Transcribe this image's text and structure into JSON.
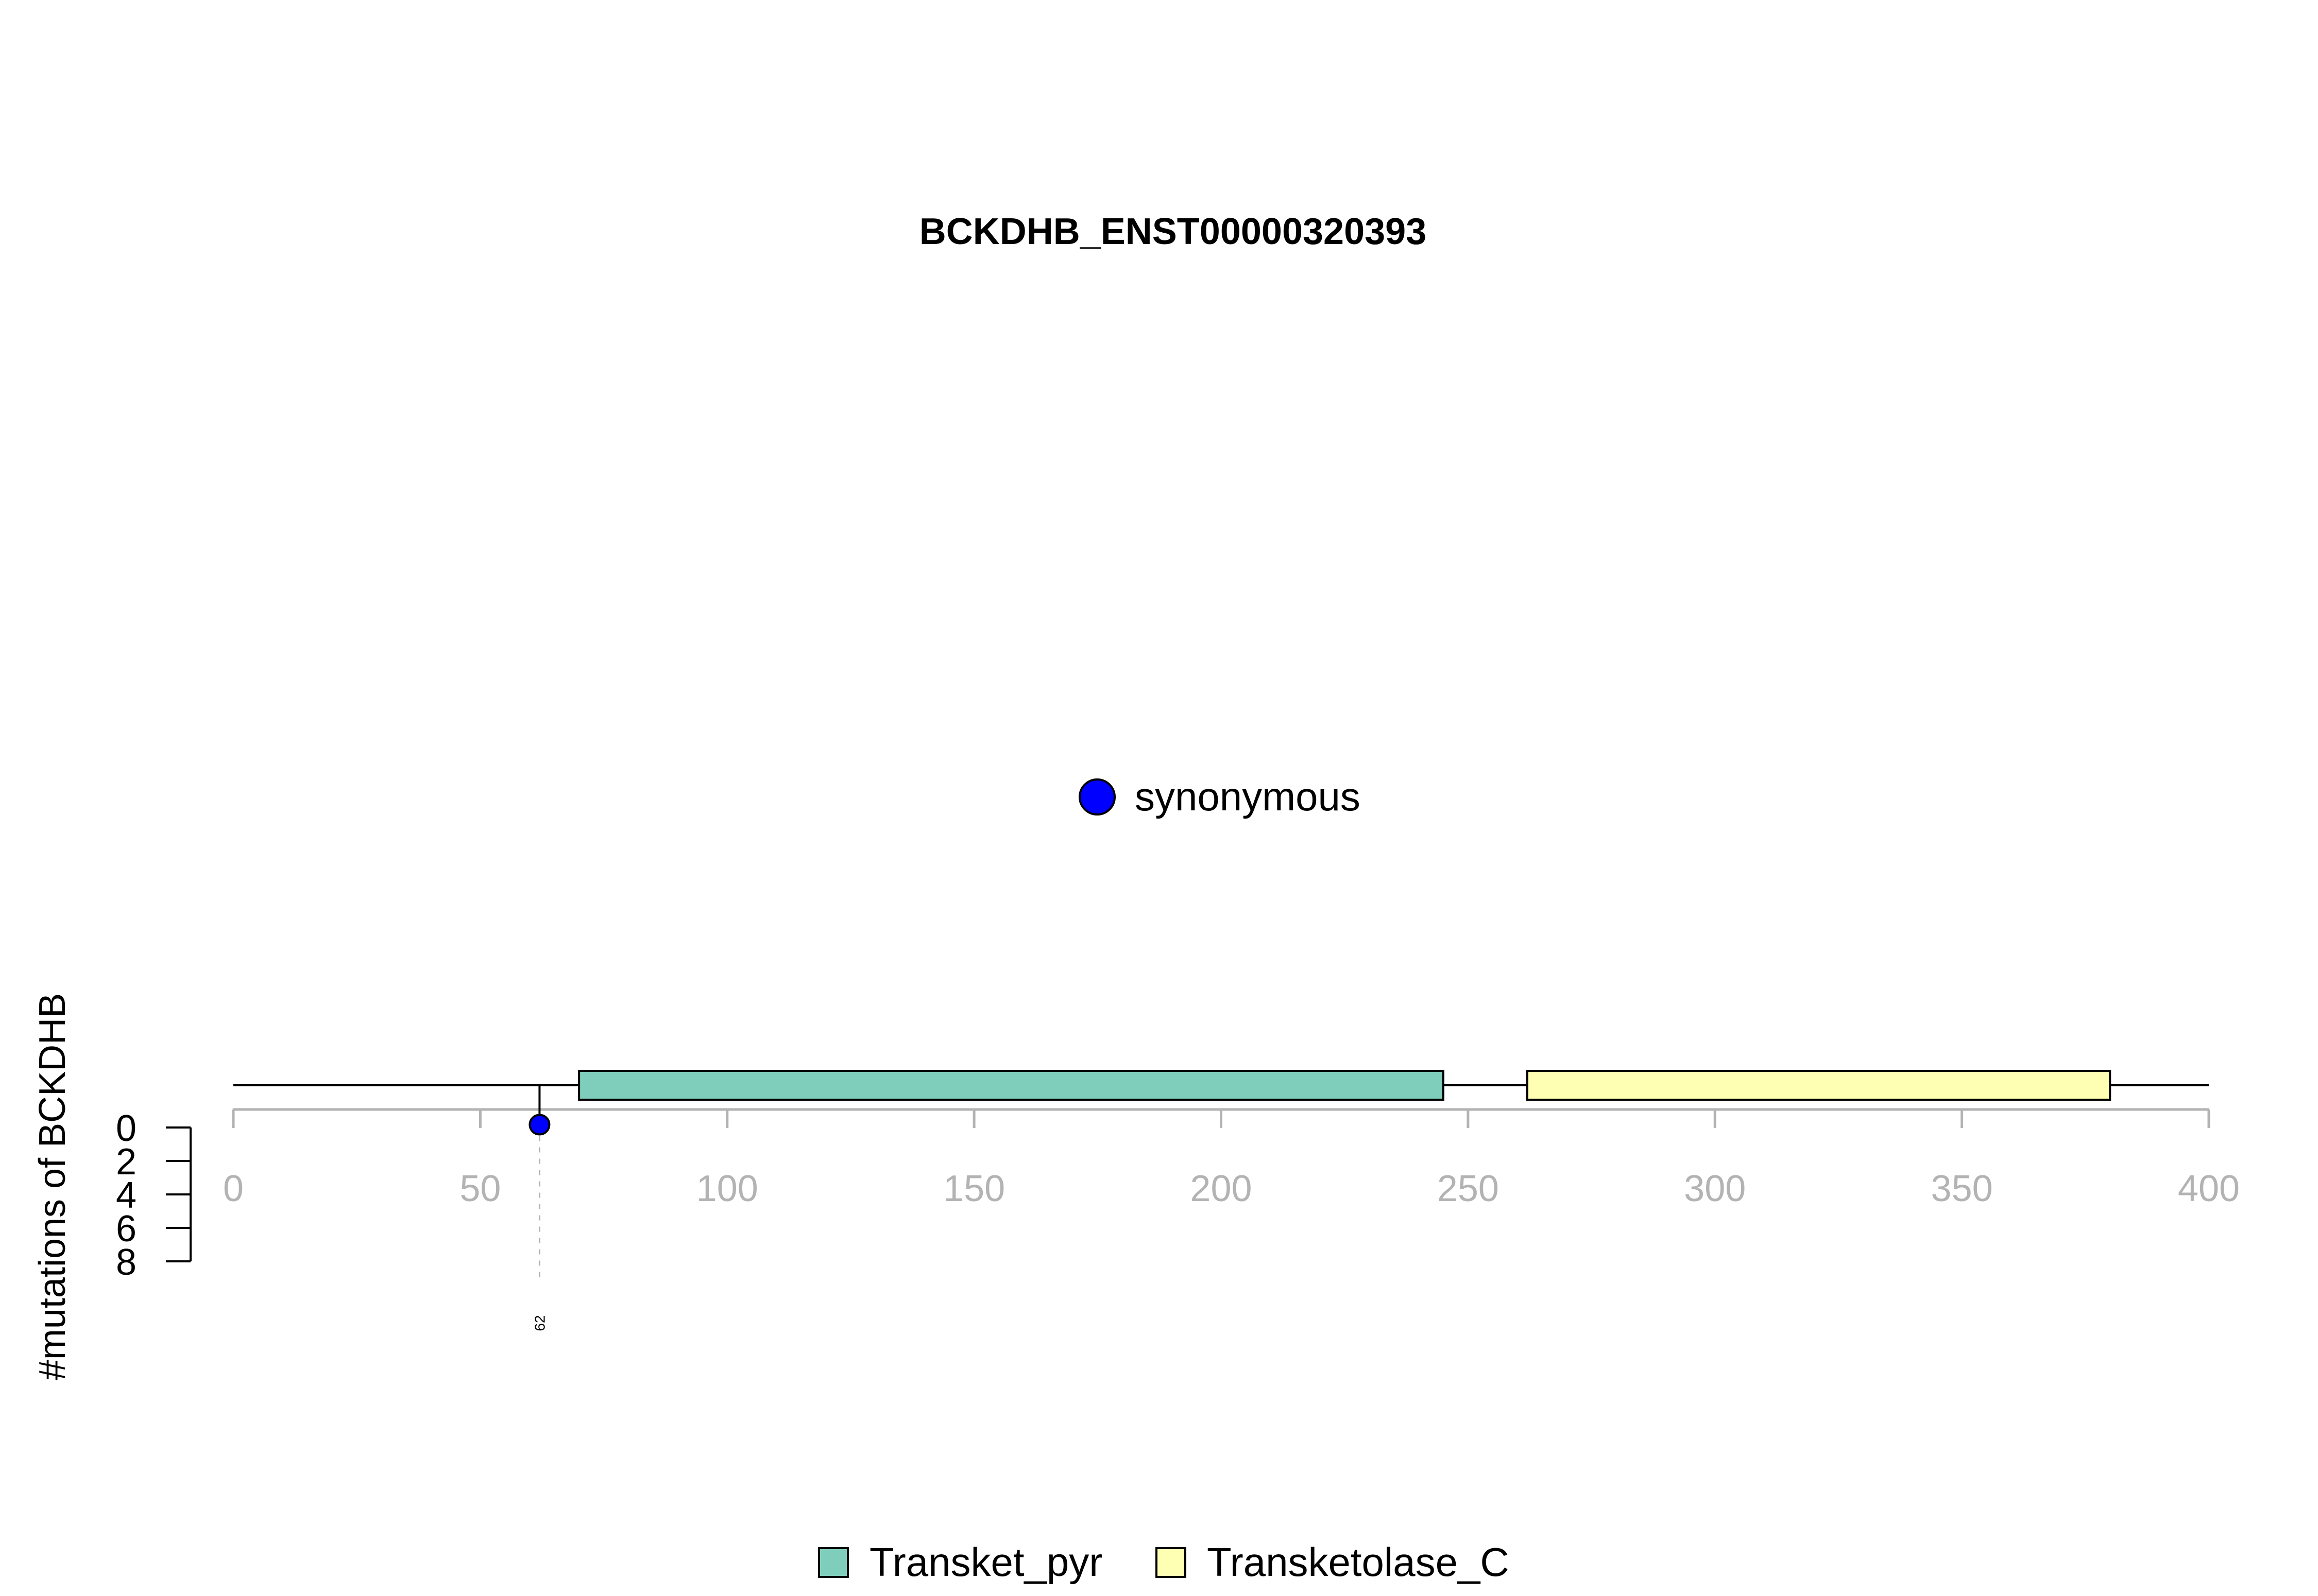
{
  "chart_data": {
    "type": "lollipop",
    "title": "BCKDHB_ENST00000320393",
    "ylabel": "#mutations of BCKDHB",
    "xlim": [
      0,
      400
    ],
    "x_ticks": [
      0,
      50,
      100,
      150,
      200,
      250,
      300,
      350,
      400
    ],
    "ylim": [
      0,
      8
    ],
    "y_ticks": [
      0,
      2,
      4,
      6,
      8
    ],
    "protein_length": 400,
    "domains": [
      {
        "name": "Transket_pyr",
        "start": 70,
        "end": 245,
        "color": "#7fcdbb"
      },
      {
        "name": "Transketolase_C",
        "start": 262,
        "end": 380,
        "color": "#ffffb3"
      }
    ],
    "mutations": [
      {
        "position": 62,
        "count": 1,
        "label": "62",
        "type": "synonymous",
        "color": "#0000ff"
      }
    ],
    "mutation_legend": [
      {
        "label": "synonymous",
        "color": "#0000ff"
      }
    ],
    "domain_legend": [
      {
        "label": "Transket_pyr",
        "color": "#7fcdbb"
      },
      {
        "label": "Transketolase_C",
        "color": "#ffffb3"
      }
    ],
    "grid": false
  }
}
